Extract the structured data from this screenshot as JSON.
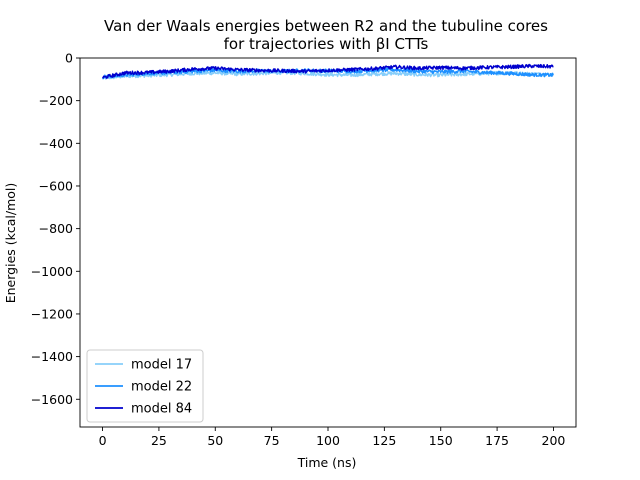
{
  "chart_data": {
    "type": "line",
    "title_line1": "Van der Waals energies between R2 and the tubuline cores",
    "title_line2": "for trajectories with βI CTTs",
    "xlabel": "Time (ns)",
    "ylabel": "Energies (kcal/mol)",
    "xlim": [
      -10,
      210
    ],
    "ylim": [
      -1730,
      0
    ],
    "xticks": [
      0,
      25,
      50,
      75,
      100,
      125,
      150,
      175,
      200
    ],
    "yticks": [
      0,
      -200,
      -400,
      -600,
      -800,
      -1000,
      -1200,
      -1400,
      -1600
    ],
    "xtick_labels": [
      "0",
      "25",
      "50",
      "75",
      "100",
      "125",
      "150",
      "175",
      "200"
    ],
    "ytick_labels": [
      "0",
      "−200",
      "−400",
      "−600",
      "−800",
      "−1000",
      "−1200",
      "−1400",
      "−1600"
    ],
    "legend_position": "lower-left",
    "grid": false,
    "series": [
      {
        "name": "model 17",
        "color": "#87cefa",
        "points": [
          [
            0,
            -95
          ],
          [
            10,
            -85
          ],
          [
            20,
            -82
          ],
          [
            30,
            -78
          ],
          [
            40,
            -72
          ],
          [
            50,
            -70
          ],
          [
            60,
            -75
          ],
          [
            70,
            -72
          ],
          [
            80,
            -68
          ],
          [
            90,
            -72
          ],
          [
            100,
            -78
          ],
          [
            110,
            -80
          ],
          [
            120,
            -75
          ],
          [
            130,
            -72
          ],
          [
            140,
            -78
          ],
          [
            150,
            -80
          ],
          [
            160,
            -76
          ],
          [
            170,
            -72
          ],
          [
            180,
            -70
          ],
          [
            190,
            -75
          ],
          [
            200,
            -78
          ]
        ]
      },
      {
        "name": "model 22",
        "color": "#1e90ff",
        "points": [
          [
            0,
            -88
          ],
          [
            10,
            -80
          ],
          [
            20,
            -72
          ],
          [
            30,
            -68
          ],
          [
            40,
            -62
          ],
          [
            50,
            -58
          ],
          [
            60,
            -62
          ],
          [
            70,
            -60
          ],
          [
            80,
            -62
          ],
          [
            90,
            -58
          ],
          [
            100,
            -60
          ],
          [
            110,
            -62
          ],
          [
            120,
            -58
          ],
          [
            130,
            -55
          ],
          [
            140,
            -62
          ],
          [
            150,
            -65
          ],
          [
            160,
            -62
          ],
          [
            170,
            -68
          ],
          [
            180,
            -72
          ],
          [
            190,
            -78
          ],
          [
            200,
            -80
          ]
        ]
      },
      {
        "name": "model 84",
        "color": "#0000cd",
        "points": [
          [
            0,
            -92
          ],
          [
            10,
            -70
          ],
          [
            20,
            -68
          ],
          [
            30,
            -62
          ],
          [
            40,
            -52
          ],
          [
            50,
            -48
          ],
          [
            60,
            -55
          ],
          [
            70,
            -58
          ],
          [
            80,
            -60
          ],
          [
            90,
            -62
          ],
          [
            100,
            -58
          ],
          [
            110,
            -55
          ],
          [
            120,
            -50
          ],
          [
            130,
            -42
          ],
          [
            140,
            -48
          ],
          [
            150,
            -45
          ],
          [
            160,
            -48
          ],
          [
            170,
            -44
          ],
          [
            180,
            -42
          ],
          [
            190,
            -38
          ],
          [
            200,
            -40
          ]
        ]
      }
    ]
  }
}
